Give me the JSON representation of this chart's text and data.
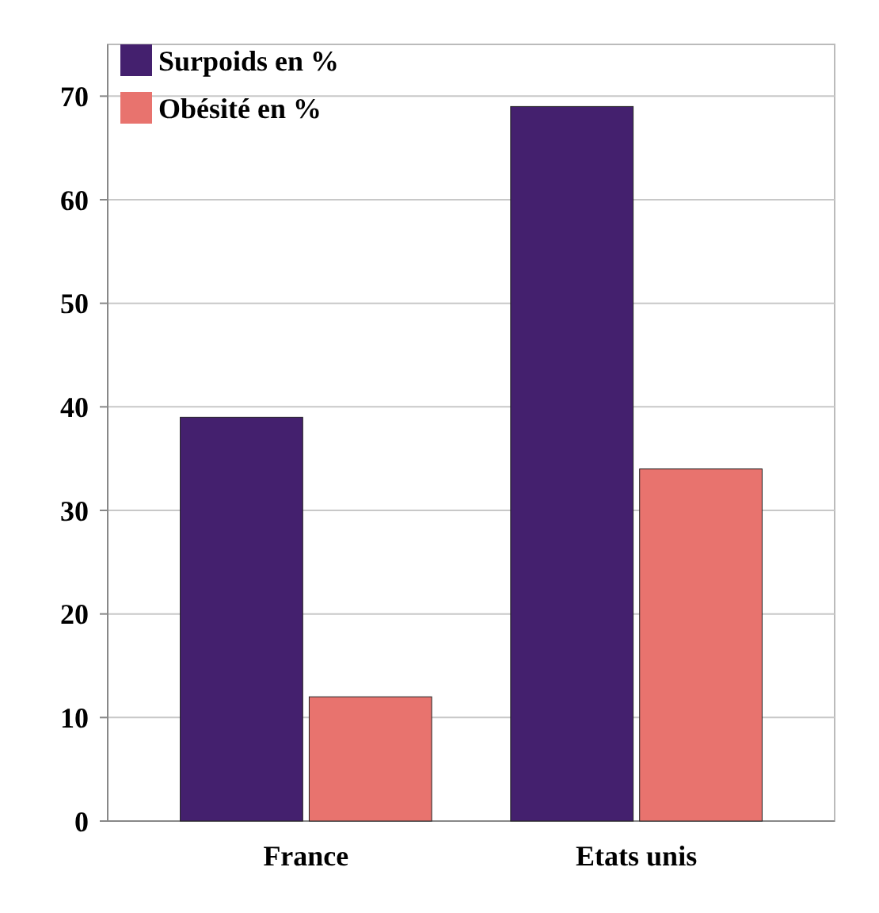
{
  "chart_data": {
    "type": "bar",
    "categories": [
      "France",
      "Etats unis"
    ],
    "series": [
      {
        "name": "Surpoids en %",
        "color": "#44206e",
        "values": [
          39,
          69
        ]
      },
      {
        "name": "Obésité en %",
        "color": "#e8736e",
        "values": [
          12,
          34
        ]
      }
    ],
    "ylim": [
      0,
      75
    ],
    "yticks": [
      0,
      10,
      20,
      30,
      40,
      50,
      60,
      70
    ],
    "grid": "y",
    "legend": "top left"
  }
}
